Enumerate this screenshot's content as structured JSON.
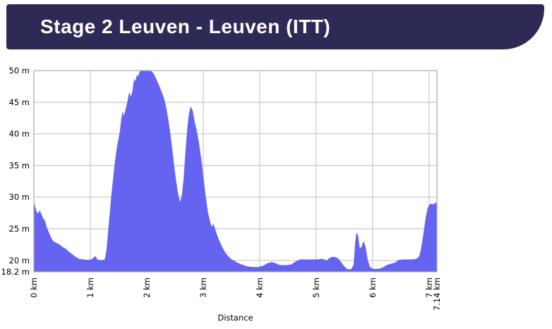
{
  "header": {
    "title": "Stage 2 Leuven - Leuven (ITT)",
    "background_color": "#2E2A56",
    "text_color": "#FFFFFF"
  },
  "chart_data": {
    "type": "area",
    "title": "",
    "xlabel": "Distance",
    "ylabel": "",
    "x_unit": "km",
    "y_unit": "m",
    "xlim": [
      0,
      7.14
    ],
    "ylim": [
      18.2,
      50
    ],
    "grid": true,
    "legend": "none",
    "x_ticks": [
      {
        "value": 0,
        "label": "0 km"
      },
      {
        "value": 1,
        "label": "1 km"
      },
      {
        "value": 2,
        "label": "2 km"
      },
      {
        "value": 3,
        "label": "3 km"
      },
      {
        "value": 4,
        "label": "4 km"
      },
      {
        "value": 5,
        "label": "5 km"
      },
      {
        "value": 6,
        "label": "6 km"
      },
      {
        "value": 7,
        "label": "7 km"
      },
      {
        "value": 7.14,
        "label": "7.14 km"
      }
    ],
    "y_ticks": [
      {
        "value": 50,
        "label": "50 m"
      },
      {
        "value": 45,
        "label": "45 m"
      },
      {
        "value": 40,
        "label": "40 m"
      },
      {
        "value": 35,
        "label": "35 m"
      },
      {
        "value": 30,
        "label": "30 m"
      },
      {
        "value": 25,
        "label": "25 m"
      },
      {
        "value": 20,
        "label": "20 m"
      },
      {
        "value": 18.2,
        "label": "18.2 m"
      }
    ],
    "colors": {
      "area_fill": "#6464F0",
      "grid": "#CCCCCC",
      "spine": "#AAAAAA",
      "tick_text": "#000000"
    },
    "series": [
      {
        "name": "elevation",
        "points": [
          [
            0,
            29.1
          ],
          [
            0.02,
            28.4
          ],
          [
            0.05,
            27.5
          ],
          [
            0.07,
            27.3
          ],
          [
            0.1,
            27.8
          ],
          [
            0.12,
            27.5
          ],
          [
            0.16,
            26.6
          ],
          [
            0.19,
            26.3
          ],
          [
            0.22,
            25.3
          ],
          [
            0.25,
            24.6
          ],
          [
            0.28,
            24
          ],
          [
            0.31,
            23.4
          ],
          [
            0.34,
            23
          ],
          [
            0.4,
            22.7
          ],
          [
            0.45,
            22.5
          ],
          [
            0.5,
            22.1
          ],
          [
            0.56,
            21.8
          ],
          [
            0.62,
            21.3
          ],
          [
            0.68,
            20.9
          ],
          [
            0.74,
            20.5
          ],
          [
            0.8,
            20.2
          ],
          [
            0.88,
            20.1
          ],
          [
            0.96,
            20
          ],
          [
            1.02,
            20.1
          ],
          [
            1.06,
            20.4
          ],
          [
            1.09,
            20.6
          ],
          [
            1.12,
            20.1
          ],
          [
            1.17,
            20
          ],
          [
            1.22,
            20
          ],
          [
            1.26,
            20.1
          ],
          [
            1.29,
            21.5
          ],
          [
            1.32,
            24.5
          ],
          [
            1.35,
            27.5
          ],
          [
            1.38,
            30.5
          ],
          [
            1.41,
            33
          ],
          [
            1.44,
            35.5
          ],
          [
            1.47,
            37.5
          ],
          [
            1.5,
            39
          ],
          [
            1.53,
            40.5
          ],
          [
            1.55,
            42
          ],
          [
            1.57,
            43.4
          ],
          [
            1.59,
            42.6
          ],
          [
            1.62,
            43.5
          ],
          [
            1.66,
            45
          ],
          [
            1.69,
            46.4
          ],
          [
            1.72,
            45.7
          ],
          [
            1.75,
            46.8
          ],
          [
            1.78,
            48.5
          ],
          [
            1.8,
            48.2
          ],
          [
            1.83,
            49.2
          ],
          [
            1.85,
            49
          ],
          [
            1.88,
            49.8
          ],
          [
            1.92,
            50
          ],
          [
            1.97,
            50
          ],
          [
            2.02,
            50
          ],
          [
            2.07,
            49.9
          ],
          [
            2.11,
            49.6
          ],
          [
            2.15,
            48.9
          ],
          [
            2.2,
            47.9
          ],
          [
            2.25,
            46.8
          ],
          [
            2.3,
            45.6
          ],
          [
            2.34,
            44.2
          ],
          [
            2.38,
            42
          ],
          [
            2.42,
            39.5
          ],
          [
            2.46,
            36.5
          ],
          [
            2.5,
            33.5
          ],
          [
            2.54,
            31
          ],
          [
            2.58,
            29.4
          ],
          [
            2.6,
            29.2
          ],
          [
            2.63,
            30.5
          ],
          [
            2.66,
            33
          ],
          [
            2.69,
            37
          ],
          [
            2.72,
            40.5
          ],
          [
            2.75,
            43
          ],
          [
            2.78,
            44.2
          ],
          [
            2.81,
            43.6
          ],
          [
            2.84,
            42
          ],
          [
            2.88,
            40.5
          ],
          [
            2.92,
            38.5
          ],
          [
            2.96,
            36
          ],
          [
            3,
            33
          ],
          [
            3.04,
            30
          ],
          [
            3.08,
            27.5
          ],
          [
            3.12,
            26
          ],
          [
            3.15,
            25.1
          ],
          [
            3.18,
            25.7
          ],
          [
            3.22,
            24.5
          ],
          [
            3.27,
            23.3
          ],
          [
            3.32,
            22.3
          ],
          [
            3.38,
            21.3
          ],
          [
            3.44,
            20.6
          ],
          [
            3.5,
            20.1
          ],
          [
            3.55,
            19.9
          ],
          [
            3.6,
            19.6
          ],
          [
            3.68,
            19.3
          ],
          [
            3.78,
            19
          ],
          [
            3.88,
            18.9
          ],
          [
            3.98,
            18.9
          ],
          [
            4.06,
            19.1
          ],
          [
            4.14,
            19.5
          ],
          [
            4.21,
            19.7
          ],
          [
            4.28,
            19.5
          ],
          [
            4.36,
            19.2
          ],
          [
            4.46,
            19.2
          ],
          [
            4.56,
            19.3
          ],
          [
            4.64,
            19.8
          ],
          [
            4.72,
            20.1
          ],
          [
            4.82,
            20.1
          ],
          [
            4.92,
            20.1
          ],
          [
            5.02,
            20.1
          ],
          [
            5.1,
            20.2
          ],
          [
            5.15,
            20.1
          ],
          [
            5.19,
            19.9
          ],
          [
            5.23,
            20.3
          ],
          [
            5.28,
            20.5
          ],
          [
            5.33,
            20.5
          ],
          [
            5.38,
            20.3
          ],
          [
            5.43,
            19.8
          ],
          [
            5.48,
            19.2
          ],
          [
            5.53,
            18.7
          ],
          [
            5.58,
            18.5
          ],
          [
            5.63,
            18.6
          ],
          [
            5.67,
            19.3
          ],
          [
            5.7,
            23
          ],
          [
            5.72,
            24.3
          ],
          [
            5.74,
            23.8
          ],
          [
            5.77,
            21.8
          ],
          [
            5.81,
            22.1
          ],
          [
            5.84,
            22.9
          ],
          [
            5.87,
            22.2
          ],
          [
            5.91,
            20
          ],
          [
            5.95,
            18.9
          ],
          [
            6.02,
            18.6
          ],
          [
            6.1,
            18.6
          ],
          [
            6.18,
            18.8
          ],
          [
            6.25,
            19.2
          ],
          [
            6.32,
            19.4
          ],
          [
            6.4,
            19.6
          ],
          [
            6.46,
            20
          ],
          [
            6.54,
            20.1
          ],
          [
            6.62,
            20.1
          ],
          [
            6.7,
            20.1
          ],
          [
            6.78,
            20.2
          ],
          [
            6.83,
            20.6
          ],
          [
            6.86,
            21.6
          ],
          [
            6.89,
            23.2
          ],
          [
            6.92,
            25
          ],
          [
            6.95,
            26.9
          ],
          [
            6.98,
            28.2
          ],
          [
            7.01,
            28.8
          ],
          [
            7.04,
            28.9
          ],
          [
            7.07,
            28.8
          ],
          [
            7.1,
            28.9
          ],
          [
            7.12,
            29.1
          ],
          [
            7.14,
            29
          ]
        ]
      }
    ]
  }
}
